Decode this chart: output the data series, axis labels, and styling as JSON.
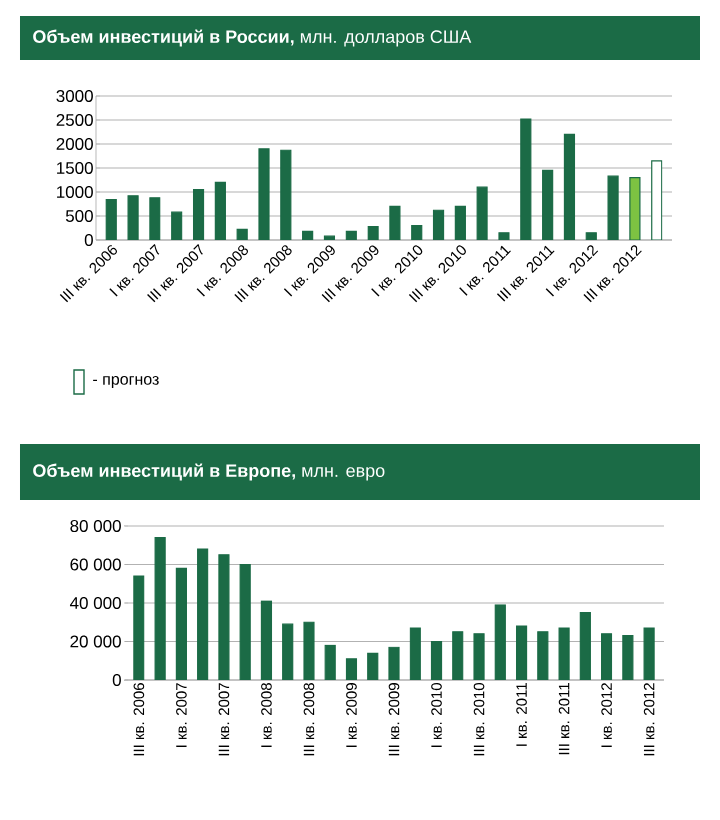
{
  "chart_data": [
    {
      "type": "bar",
      "title": "**Объем инвестиций в России,** млн. долларов США",
      "categories": [
        "III кв. 2006",
        null,
        "I кв. 2007",
        null,
        "III кв. 2007",
        null,
        "I кв. 2008",
        null,
        "III кв. 2008",
        null,
        "I кв. 2009",
        null,
        "III кв. 2009",
        null,
        "I кв. 2010",
        null,
        "III кв. 2010",
        null,
        "I кв. 2011",
        null,
        "III кв. 2011",
        null,
        "I кв. 2012",
        null,
        "III кв. 2012",
        null
      ],
      "values": [
        840,
        920,
        880,
        580,
        1050,
        1200,
        220,
        1900,
        1870,
        180,
        80,
        180,
        280,
        700,
        300,
        620,
        700,
        1100,
        150,
        2520,
        1450,
        2200,
        150,
        1330,
        1300,
        1650
      ],
      "colors": [
        "#1b6b46",
        "#1b6b46",
        "#1b6b46",
        "#1b6b46",
        "#1b6b46",
        "#1b6b46",
        "#1b6b46",
        "#1b6b46",
        "#1b6b46",
        "#1b6b46",
        "#1b6b46",
        "#1b6b46",
        "#1b6b46",
        "#1b6b46",
        "#1b6b46",
        "#1b6b46",
        "#1b6b46",
        "#1b6b46",
        "#1b6b46",
        "#1b6b46",
        "#1b6b46",
        "#1b6b46",
        "#1b6b46",
        "#1b6b46",
        "#7dc242",
        "#ffffff"
      ],
      "ylim": [
        0,
        3000
      ],
      "yticks": [
        0,
        500,
        1000,
        1500,
        2000,
        2500,
        3000
      ],
      "grid": "y",
      "annotations": [
        "- прогноз"
      ]
    },
    {
      "type": "bar",
      "title": "**Объем инвестиций в Европе,** млн. евро",
      "categories": [
        "III кв. 2006",
        null,
        "I кв. 2007",
        null,
        "III кв. 2007",
        null,
        "I кв. 2008",
        null,
        "III кв. 2008",
        null,
        "I кв. 2009",
        null,
        "III кв. 2009",
        null,
        "I кв. 2010",
        null,
        "III кв. 2010",
        null,
        "I кв. 2011",
        null,
        "III кв. 2011",
        null,
        "I кв. 2012",
        null,
        "III кв. 2012"
      ],
      "values": [
        54000,
        74000,
        58000,
        68000,
        65000,
        60000,
        41000,
        29000,
        30000,
        18000,
        11000,
        14000,
        17000,
        27000,
        20000,
        25000,
        24000,
        39000,
        28000,
        25000,
        27000,
        35000,
        24000,
        23000,
        27000
      ],
      "color": "#1b6b46",
      "ylim": [
        0,
        80000
      ],
      "yticks": [
        0,
        {
          "value": 20000,
          "label": "20 000"
        },
        {
          "value": 40000,
          "label": "40 000"
        },
        {
          "value": 60000,
          "label": "60 000"
        },
        {
          "value": 80000,
          "label": "80 000"
        }
      ],
      "grid": "y"
    }
  ]
}
